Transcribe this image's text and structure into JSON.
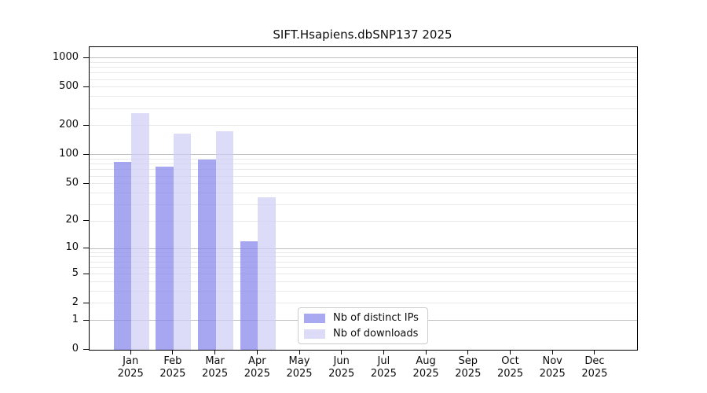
{
  "title": "SIFT.Hsapiens.dbSNP137 2025",
  "colors": {
    "distinct_ips_bar": "rgba(133,133,235,0.72)",
    "downloads_bar": "rgba(206,206,247,0.72)",
    "distinct_ips_swatch": "#a9a9f1",
    "downloads_swatch": "#dcdcf9",
    "grid_major": "#bfbfbf",
    "grid_minor": "#e9e9e9",
    "axis": "#000000"
  },
  "legend": {
    "items": [
      {
        "label": "Nb of distinct IPs"
      },
      {
        "label": "Nb of downloads"
      }
    ]
  },
  "chart_data": {
    "type": "bar",
    "title": "SIFT.Hsapiens.dbSNP137 2025",
    "xlabel": "",
    "ylabel": "",
    "yscale": "log1p",
    "grid": true,
    "legend_position": "bottom-center",
    "categories": [
      "Jan 2025",
      "Feb 2025",
      "Mar 2025",
      "Apr 2025",
      "May 2025",
      "Jun 2025",
      "Jul 2025",
      "Aug 2025",
      "Sep 2025",
      "Oct 2025",
      "Nov 2025",
      "Dec 2025"
    ],
    "series": [
      {
        "name": "Nb of distinct IPs",
        "values": [
          85,
          76,
          89,
          12,
          0,
          0,
          0,
          0,
          0,
          0,
          0,
          0
        ]
      },
      {
        "name": "Nb of downloads",
        "values": [
          270,
          165,
          175,
          36,
          0,
          0,
          0,
          0,
          0,
          0,
          0,
          0
        ]
      }
    ],
    "yticks": [
      0,
      1,
      2,
      5,
      10,
      20,
      50,
      100,
      200,
      500,
      1000
    ],
    "minor_grid": [
      3,
      4,
      6,
      7,
      8,
      9,
      30,
      40,
      60,
      70,
      80,
      90,
      300,
      400,
      600,
      700,
      800,
      900
    ],
    "ylim": [
      0,
      1290
    ]
  }
}
